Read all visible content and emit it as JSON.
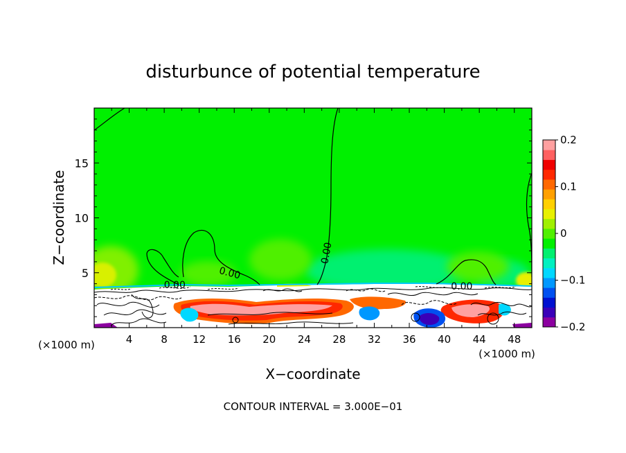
{
  "chart_data": {
    "type": "heatmap",
    "title": "disturbunce of potential temperature",
    "xlabel": "X−coordinate",
    "ylabel": "Z−coordinate",
    "x_unit_left": "(×1000 m)",
    "x_unit_right": "(×1000 m)",
    "xlim": [
      0,
      50
    ],
    "ylim": [
      0,
      20
    ],
    "x_ticks": [
      4,
      8,
      12,
      16,
      20,
      24,
      28,
      32,
      36,
      40,
      44,
      48
    ],
    "y_ticks": [
      5,
      10,
      15
    ],
    "colorbar": {
      "range": [
        -0.2,
        0.2
      ],
      "ticks": [
        {
          "value": 0.2,
          "label": "0.2"
        },
        {
          "value": 0.1,
          "label": "0.1"
        },
        {
          "value": 0,
          "label": "0"
        },
        {
          "value": -0.1,
          "label": "−0.1"
        },
        {
          "value": -0.2,
          "label": "−0.2"
        }
      ],
      "colors": [
        "#8c00a0",
        "#3a00b8",
        "#0010d0",
        "#0050f0",
        "#0098ff",
        "#00d8ff",
        "#00f0c0",
        "#00f070",
        "#00f000",
        "#50f000",
        "#a0f000",
        "#e8f000",
        "#ffd000",
        "#ffa000",
        "#ff6800",
        "#ff2800",
        "#f00000",
        "#ff6060",
        "#ffa0a0"
      ]
    },
    "contour_labels": [
      {
        "x": 9.2,
        "z": 3.9,
        "text": "0.00"
      },
      {
        "x": 15.5,
        "z": 5.0,
        "text": "0.00"
      },
      {
        "x": 26.5,
        "z": 6.8,
        "text": "0.00"
      },
      {
        "x": 42.0,
        "z": 3.8,
        "text": "0.00"
      }
    ],
    "contour_interval_text": "CONTOUR INTERVAL = 3.000E−01"
  }
}
